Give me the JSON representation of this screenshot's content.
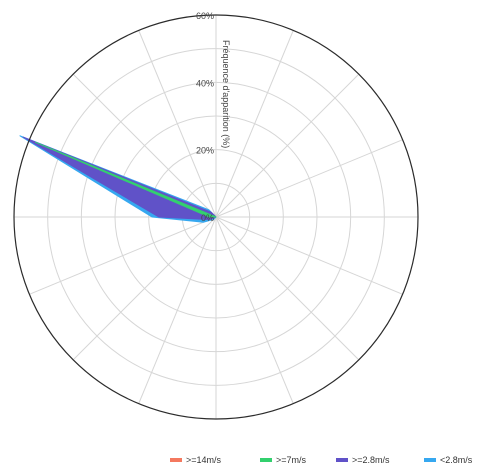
{
  "chart_data": {
    "type": "area",
    "subtype": "polar-stacked-wind-rose",
    "radial_axis": {
      "label": "Fréquence d'apparition (%)",
      "ticks": [
        "0%",
        "20%",
        "40%",
        "60%"
      ],
      "range": [
        0,
        60
      ]
    },
    "direction_count": 16,
    "directions_deg": [
      0,
      22.5,
      45,
      67.5,
      90,
      112.5,
      135,
      157.5,
      180,
      202.5,
      225,
      247.5,
      270,
      292.5,
      315,
      337.5
    ],
    "series": [
      {
        "name": ">=14m/s",
        "color": "#f4795f",
        "values": [
          0,
          0,
          0,
          0,
          0,
          0,
          0,
          0,
          0,
          0,
          0,
          0,
          0,
          0,
          0,
          0
        ]
      },
      {
        "name": ">=7m/s",
        "color": "#33d06e",
        "values": [
          0,
          0,
          0,
          0,
          0,
          0,
          0,
          0,
          0,
          0,
          0,
          0,
          2,
          58,
          0,
          0
        ]
      },
      {
        "name": ">=2.8m/s",
        "color": "#6052c8",
        "values": [
          0,
          0,
          0,
          0,
          0,
          0,
          0,
          0,
          0,
          0,
          0,
          2,
          17,
          62,
          2,
          0
        ]
      },
      {
        "name": "<2.8m/s",
        "color": "#36a8f0",
        "values": [
          0,
          0,
          0,
          0,
          0,
          0,
          0,
          0,
          0,
          0,
          1,
          4,
          19,
          63,
          3,
          0
        ]
      }
    ],
    "grid": true,
    "legend_position": "bottom-right"
  }
}
